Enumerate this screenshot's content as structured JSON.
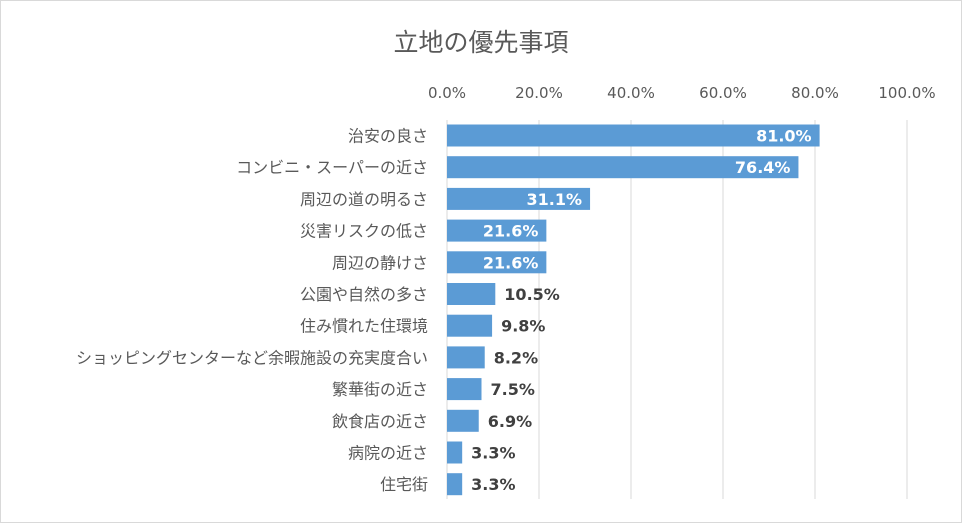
{
  "chart_data": {
    "type": "bar",
    "orientation": "horizontal",
    "title": "立地の優先事項",
    "xlabel": "",
    "ylabel": "",
    "xlim": [
      0,
      100
    ],
    "x_ticks": [
      0,
      20,
      40,
      60,
      80,
      100
    ],
    "x_tick_labels": [
      "0.0%",
      "20.0%",
      "40.0%",
      "60.0%",
      "80.0%",
      "100.0%"
    ],
    "axis_position": "top",
    "grid": true,
    "legend": "none",
    "bar_color": "#5b9bd5",
    "categories": [
      "治安の良さ",
      "コンビニ・スーパーの近さ",
      "周辺の道の明るさ",
      "災害リスクの低さ",
      "周辺の静けさ",
      "公園や自然の多さ",
      "住み慣れた住環境",
      "ショッピングセンターなど余暇施設の充実度合い",
      "繁華街の近さ",
      "飲食店の近さ",
      "病院の近さ",
      "住宅街"
    ],
    "values": [
      81.0,
      76.4,
      31.1,
      21.6,
      21.6,
      10.5,
      9.8,
      8.2,
      7.5,
      6.9,
      3.3,
      3.3
    ],
    "value_labels": [
      "81.0%",
      "76.4%",
      "31.1%",
      "21.6%",
      "21.6%",
      "10.5%",
      "9.8%",
      "8.2%",
      "7.5%",
      "6.9%",
      "3.3%",
      "3.3%"
    ]
  }
}
